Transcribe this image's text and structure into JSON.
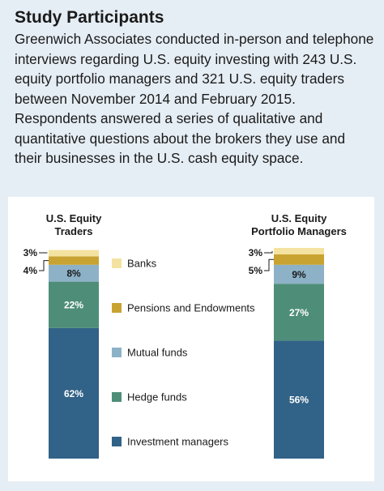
{
  "title": "Study Participants",
  "intro": "Greenwich Associates conducted in-person and telephone interviews regarding U.S. equity investing with 243 U.S. equity portfolio managers and 321 U.S. equity traders between November 2014 and February 2015. Respondents answered a series of qualitative and quantitative questions about the brokers they use and their businesses in the U.S. cash equity space.",
  "chart_data": {
    "type": "bar",
    "stacked": true,
    "categories": [
      "U.S. Equity Traders",
      "U.S. Equity Portfolio Managers"
    ],
    "category_label_lines": [
      [
        "U.S. Equity",
        "Traders"
      ],
      [
        "U.S. Equity",
        "Portfolio Managers"
      ]
    ],
    "series": [
      {
        "name": "Investment managers",
        "values": [
          62,
          56
        ],
        "labels": [
          "62%",
          "56%"
        ],
        "color": "#316287"
      },
      {
        "name": "Hedge funds",
        "values": [
          22,
          27
        ],
        "labels": [
          "22%",
          "27%"
        ],
        "color": "#4e8e78"
      },
      {
        "name": "Mutual funds",
        "values": [
          8,
          9
        ],
        "labels": [
          "8%",
          "9%"
        ],
        "color": "#8db2c8"
      },
      {
        "name": "Pensions and Endowments",
        "values": [
          4,
          5
        ],
        "labels": [
          "4%",
          "5%"
        ],
        "color": "#c9a331"
      },
      {
        "name": "Banks",
        "values": [
          3,
          3
        ],
        "labels": [
          "3%",
          "3%"
        ],
        "color": "#f4e3a0"
      }
    ],
    "legend_order": [
      "Banks",
      "Pensions and Endowments",
      "Mutual funds",
      "Hedge funds",
      "Investment managers"
    ],
    "legend_position": "center",
    "unit": "%",
    "ylim": [
      0,
      100
    ]
  }
}
